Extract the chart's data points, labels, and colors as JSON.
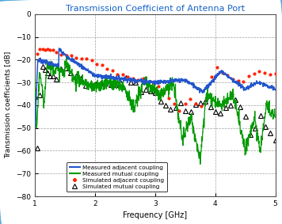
{
  "title": "Transmission Coefficient of Antenna Port",
  "xlabel": "Frequency [GHz]",
  "ylabel": "Transmission coefficients [dB]",
  "xlim": [
    1,
    5
  ],
  "ylim": [
    -80,
    0
  ],
  "yticks": [
    0,
    -10,
    -20,
    -30,
    -40,
    -50,
    -60,
    -70,
    -80
  ],
  "xticks": [
    1,
    2,
    3,
    4,
    5
  ],
  "title_color": "#1464C8",
  "background_color": "#ffffff",
  "border_color": "#55AADD",
  "legend_labels": [
    "Measured adjacent coupling",
    "Measured mutual coupling",
    "Simulated adjacent coupling",
    "Simulated mutual coupling"
  ],
  "line_colors": {
    "meas_adj": "#2255CC",
    "meas_mut": "#009900",
    "sim_adj": "#FF2200",
    "sim_mut": "#000000"
  },
  "figsize": [
    3.56,
    2.83
  ],
  "dpi": 100
}
